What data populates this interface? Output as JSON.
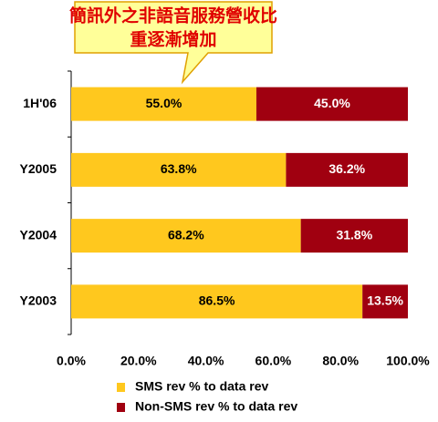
{
  "chart_data": {
    "type": "stacked-barh",
    "annotations": [
      "簡訊外之非語音服務營收比",
      "重逐漸增加"
    ],
    "categories": [
      "1H'06",
      "Y2005",
      "Y2004",
      "Y2003"
    ],
    "series": [
      {
        "name": "SMS rev % to data rev",
        "color": "#ffc81e",
        "values": [
          55.0,
          63.8,
          68.2,
          86.5
        ],
        "value_labels": [
          "55.0%",
          "63.8%",
          "68.2%",
          "86.5%"
        ]
      },
      {
        "name": "Non-SMS rev % to data rev",
        "color": "#a00010",
        "values": [
          45.0,
          36.2,
          31.8,
          13.5
        ],
        "value_labels": [
          "45.0%",
          "36.2%",
          "31.8%",
          "13.5%"
        ]
      }
    ],
    "xlim": [
      0,
      100
    ],
    "xticks": [
      {
        "value": 0,
        "label": "0.0%"
      },
      {
        "value": 20,
        "label": "20.0%"
      },
      {
        "value": 40,
        "label": "40.0%"
      },
      {
        "value": 60,
        "label": "60.0%"
      },
      {
        "value": 80,
        "label": "80.0%"
      },
      {
        "value": 100,
        "label": "100.0%"
      }
    ],
    "legend": "bottom"
  }
}
